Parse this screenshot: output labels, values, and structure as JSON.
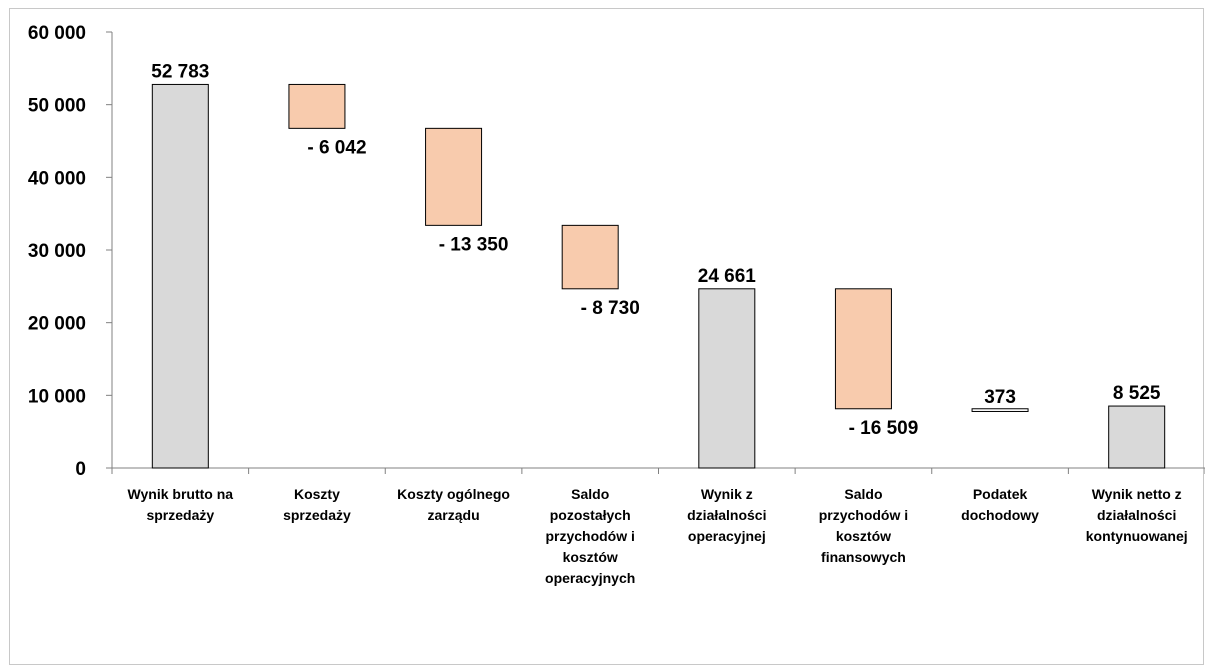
{
  "chart_data": {
    "type": "bar",
    "subtype": "waterfall",
    "categories": [
      "Wynik brutto na sprzedaży",
      "Koszty sprzedaży",
      "Koszty ogólnego zarządu",
      "Saldo pozostałych przychodów i kosztów operacyjnych",
      "Wynik z działalności operacyjnej",
      "Saldo przychodów i kosztów finansowych",
      "Podatek dochodowy",
      "Wynik netto z działalności kontynuowanej"
    ],
    "category_lines": [
      [
        "Wynik brutto na",
        "sprzedaży"
      ],
      [
        "Koszty",
        "sprzedaży"
      ],
      [
        "Koszty ogólnego",
        "zarządu"
      ],
      [
        "Saldo",
        "pozostałych",
        "przychodów i",
        "kosztów",
        "operacyjnych"
      ],
      [
        "Wynik z",
        "działalności",
        "operacyjnej"
      ],
      [
        "Saldo",
        "przychodów i",
        "kosztów",
        "finansowych"
      ],
      [
        "Podatek",
        "dochodowy"
      ],
      [
        "Wynik netto z",
        "działalności",
        "kontynuowanej"
      ]
    ],
    "values": [
      52783,
      -6042,
      -13350,
      -8730,
      24661,
      -16509,
      373,
      8525
    ],
    "bar_kind": [
      "total",
      "change",
      "change",
      "change",
      "total",
      "change",
      "change",
      "total"
    ],
    "data_labels": [
      "52 783",
      "- 6 042",
      "- 13 350",
      "- 8 730",
      "24 661",
      "- 16 509",
      "373",
      "8 525"
    ],
    "y_ticks": [
      "0",
      "10 000",
      "20 000",
      "30 000",
      "40 000",
      "50 000",
      "60 000"
    ],
    "ylim": [
      0,
      60000
    ],
    "grid": false,
    "legend": "none",
    "colors": {
      "total": "#d9d9d9",
      "decrease": "#f8cbad",
      "increase": "#ffffff",
      "outline": "#000000",
      "axis": "#808080"
    }
  }
}
